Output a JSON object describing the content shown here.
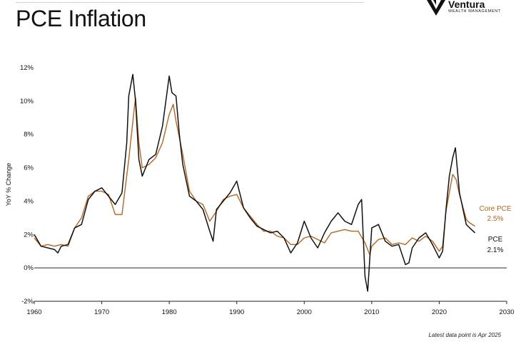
{
  "page_title": "PCE Inflation",
  "logo": {
    "name": "Ventura",
    "subtitle": "WEALTH MANAGEMENT"
  },
  "footnote": "Latest data point is Apr 2025",
  "colors": {
    "pce": "#111111",
    "core": "#b5651d",
    "zero_line": "#555555"
  },
  "chart_data": {
    "type": "line",
    "title": "PCE Inflation",
    "xlabel": "",
    "ylabel": "YoY % Change",
    "xlim": [
      1960,
      2030
    ],
    "ylim": [
      -2,
      12
    ],
    "x_ticks": [
      "1960",
      "1970",
      "1980",
      "1990",
      "2000",
      "2010",
      "2020",
      "2030"
    ],
    "y_ticks": [
      "12%",
      "10%",
      "8%",
      "6%",
      "4%",
      "2%",
      "0%",
      "-2%"
    ],
    "grid": false,
    "series": [
      {
        "name": "PCE",
        "end_label": "PCE",
        "end_value_label": "2.1%",
        "color": "#111111",
        "points": [
          [
            1960,
            2.0
          ],
          [
            1961,
            1.3
          ],
          [
            1962,
            1.2
          ],
          [
            1963,
            1.1
          ],
          [
            1963.5,
            0.9
          ],
          [
            1964,
            1.3
          ],
          [
            1965,
            1.4
          ],
          [
            1966,
            2.4
          ],
          [
            1967,
            2.6
          ],
          [
            1968,
            4.1
          ],
          [
            1969,
            4.6
          ],
          [
            1970,
            4.8
          ],
          [
            1971,
            4.3
          ],
          [
            1972,
            3.8
          ],
          [
            1973,
            4.5
          ],
          [
            1973.7,
            7.5
          ],
          [
            1974,
            10.3
          ],
          [
            1974.6,
            11.6
          ],
          [
            1975,
            10.0
          ],
          [
            1975.5,
            6.5
          ],
          [
            1976,
            5.5
          ],
          [
            1977,
            6.5
          ],
          [
            1978,
            6.8
          ],
          [
            1979,
            8.5
          ],
          [
            1980,
            11.5
          ],
          [
            1980.4,
            10.5
          ],
          [
            1981,
            10.3
          ],
          [
            1981.5,
            8.0
          ],
          [
            1982,
            6.2
          ],
          [
            1983,
            4.3
          ],
          [
            1984,
            4.0
          ],
          [
            1985,
            3.5
          ],
          [
            1986,
            2.2
          ],
          [
            1986.5,
            1.6
          ],
          [
            1987,
            3.5
          ],
          [
            1988,
            4.0
          ],
          [
            1989,
            4.5
          ],
          [
            1990,
            5.2
          ],
          [
            1991,
            3.6
          ],
          [
            1992,
            3.0
          ],
          [
            1993,
            2.5
          ],
          [
            1994,
            2.3
          ],
          [
            1995,
            2.1
          ],
          [
            1996,
            2.2
          ],
          [
            1997,
            1.8
          ],
          [
            1998,
            0.9
          ],
          [
            1999,
            1.5
          ],
          [
            2000,
            2.8
          ],
          [
            2001,
            1.8
          ],
          [
            2002,
            1.2
          ],
          [
            2003,
            2.1
          ],
          [
            2004,
            2.8
          ],
          [
            2005,
            3.3
          ],
          [
            2006,
            2.8
          ],
          [
            2007,
            2.6
          ],
          [
            2008,
            3.8
          ],
          [
            2008.5,
            4.1
          ],
          [
            2009,
            -0.5
          ],
          [
            2009.4,
            -1.4
          ],
          [
            2010,
            2.4
          ],
          [
            2011,
            2.6
          ],
          [
            2012,
            1.6
          ],
          [
            2013,
            1.3
          ],
          [
            2014,
            1.4
          ],
          [
            2015,
            0.2
          ],
          [
            2015.5,
            0.3
          ],
          [
            2016,
            1.2
          ],
          [
            2017,
            1.8
          ],
          [
            2018,
            2.1
          ],
          [
            2019,
            1.4
          ],
          [
            2020,
            0.6
          ],
          [
            2020.5,
            1.0
          ],
          [
            2021,
            3.5
          ],
          [
            2021.5,
            5.5
          ],
          [
            2022,
            6.6
          ],
          [
            2022.4,
            7.2
          ],
          [
            2023,
            4.5
          ],
          [
            2024,
            2.6
          ],
          [
            2024.5,
            2.4
          ],
          [
            2025.3,
            2.1
          ]
        ]
      },
      {
        "name": "Core PCE",
        "end_label": "Core PCE",
        "end_value_label": "2.5%",
        "color": "#b5651d",
        "points": [
          [
            1960,
            1.8
          ],
          [
            1961,
            1.3
          ],
          [
            1962,
            1.4
          ],
          [
            1963,
            1.3
          ],
          [
            1964,
            1.4
          ],
          [
            1965,
            1.3
          ],
          [
            1966,
            2.4
          ],
          [
            1967,
            3.0
          ],
          [
            1968,
            4.3
          ],
          [
            1969,
            4.6
          ],
          [
            1970,
            4.6
          ],
          [
            1971,
            4.4
          ],
          [
            1972,
            3.2
          ],
          [
            1973,
            3.2
          ],
          [
            1974,
            6.5
          ],
          [
            1974.8,
            9.5
          ],
          [
            1975,
            10.2
          ],
          [
            1975.5,
            7.5
          ],
          [
            1976,
            6.0
          ],
          [
            1977,
            6.2
          ],
          [
            1978,
            6.6
          ],
          [
            1979,
            7.5
          ],
          [
            1980,
            9.2
          ],
          [
            1980.6,
            9.8
          ],
          [
            1981,
            8.8
          ],
          [
            1982,
            6.8
          ],
          [
            1983,
            4.6
          ],
          [
            1984,
            4.0
          ],
          [
            1985,
            3.8
          ],
          [
            1986,
            2.8
          ],
          [
            1987,
            3.4
          ],
          [
            1988,
            4.1
          ],
          [
            1989,
            4.3
          ],
          [
            1990,
            4.4
          ],
          [
            1991,
            3.6
          ],
          [
            1992,
            3.1
          ],
          [
            1993,
            2.6
          ],
          [
            1994,
            2.2
          ],
          [
            1995,
            2.2
          ],
          [
            1996,
            1.9
          ],
          [
            1997,
            1.8
          ],
          [
            1998,
            1.4
          ],
          [
            1999,
            1.4
          ],
          [
            2000,
            1.8
          ],
          [
            2001,
            1.9
          ],
          [
            2002,
            1.7
          ],
          [
            2003,
            1.5
          ],
          [
            2004,
            2.1
          ],
          [
            2005,
            2.2
          ],
          [
            2006,
            2.3
          ],
          [
            2007,
            2.2
          ],
          [
            2008,
            2.2
          ],
          [
            2009,
            1.5
          ],
          [
            2009.7,
            0.8
          ],
          [
            2010,
            1.3
          ],
          [
            2011,
            1.7
          ],
          [
            2012,
            1.8
          ],
          [
            2013,
            1.4
          ],
          [
            2014,
            1.5
          ],
          [
            2015,
            1.4
          ],
          [
            2016,
            1.8
          ],
          [
            2017,
            1.6
          ],
          [
            2018,
            1.9
          ],
          [
            2019,
            1.6
          ],
          [
            2020,
            1.0
          ],
          [
            2020.5,
            1.3
          ],
          [
            2021,
            3.4
          ],
          [
            2021.8,
            5.2
          ],
          [
            2022,
            5.6
          ],
          [
            2022.5,
            5.3
          ],
          [
            2023,
            4.4
          ],
          [
            2024,
            2.9
          ],
          [
            2024.5,
            2.7
          ],
          [
            2025.3,
            2.5
          ]
        ]
      }
    ]
  }
}
